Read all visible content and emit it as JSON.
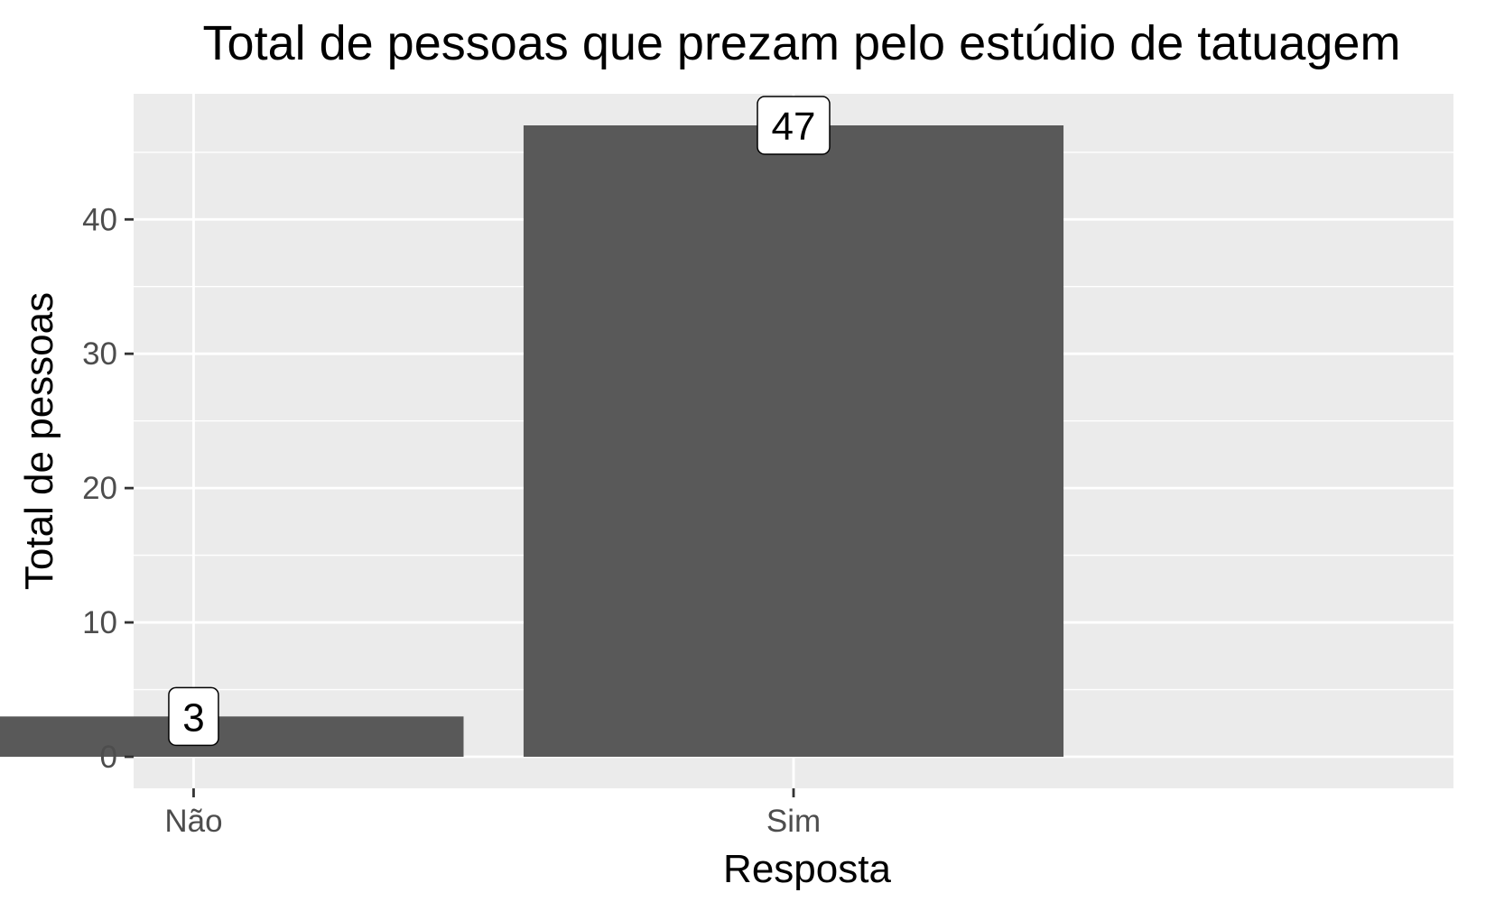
{
  "chart_data": {
    "type": "bar",
    "title": "Total de pessoas que prezam pelo estúdio de tatuagem",
    "xlabel": "Resposta",
    "ylabel": "Total de pessoas",
    "categories": [
      "Não",
      "Sim"
    ],
    "values": [
      3,
      47
    ],
    "data_labels": [
      "3",
      "47"
    ],
    "ylim": [
      -2.35,
      49.35
    ],
    "yticks": [
      0,
      10,
      20,
      30,
      40
    ],
    "ytick_labels": [
      "0",
      "10",
      "20",
      "30",
      "40"
    ],
    "grid": true,
    "legend": "none",
    "colors": {
      "bar": "#595959",
      "panel": "#ebebeb",
      "grid": "#ffffff",
      "tick": "#333333",
      "tick_label": "#4d4d4d",
      "label_fill": "#ffffff",
      "label_border": "#000000"
    }
  }
}
